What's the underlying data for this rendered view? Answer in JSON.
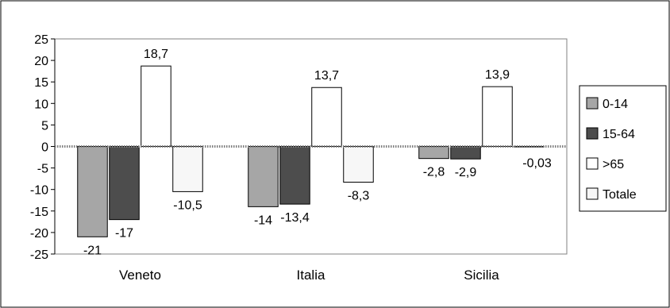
{
  "chart_data": {
    "type": "bar",
    "title": "",
    "xlabel": "",
    "ylabel": "",
    "categories": [
      "Veneto",
      "Italia",
      "Sicilia"
    ],
    "series": [
      {
        "name": "0-14",
        "color": "#a6a6a6",
        "values": [
          -21,
          -14,
          -2.8
        ],
        "labels": [
          "-21",
          "-14",
          "-2,8"
        ]
      },
      {
        "name": "15-64",
        "color": "#4d4d4d",
        "values": [
          -17,
          -13.4,
          -2.9
        ],
        "labels": [
          "-17",
          "-13,4",
          "-2,9"
        ]
      },
      {
        "name": ">65",
        "color": "#ffffff",
        "values": [
          18.7,
          13.7,
          13.9
        ],
        "labels": [
          "18,7",
          "13,7",
          "13,9"
        ]
      },
      {
        "name": "Totale",
        "color": "#f7f7f7",
        "values": [
          -10.5,
          -8.3,
          -0.03
        ],
        "labels": [
          "-10,5",
          "-8,3",
          "-0,03"
        ]
      }
    ],
    "ylim": [
      -25,
      25
    ],
    "yticks": [
      25,
      20,
      15,
      10,
      5,
      0,
      -5,
      -10,
      -15,
      -20,
      -25
    ],
    "grid": false,
    "legend_position": "right"
  }
}
